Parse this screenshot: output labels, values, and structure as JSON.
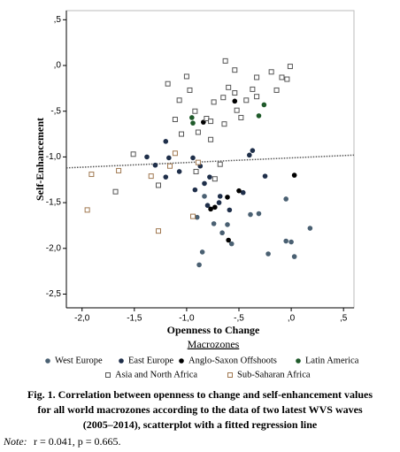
{
  "chart_data": {
    "type": "scatter",
    "x_label": "Openness to Change",
    "y_label": "Self-Enhancement",
    "legend_title": "Macrozones",
    "xlim": [
      -2.15,
      0.6
    ],
    "ylim": [
      -2.65,
      0.6
    ],
    "xticks": [
      {
        "value": -2.0,
        "label": "-2,0"
      },
      {
        "value": -1.5,
        "label": "-1,5"
      },
      {
        "value": -1.0,
        "label": "-1,0"
      },
      {
        "value": -0.5,
        "label": "-,5"
      },
      {
        "value": 0,
        "label": ",0"
      },
      {
        "value": 0.5,
        "label": ",5"
      }
    ],
    "yticks": [
      {
        "value": 0.5,
        "label": ",5"
      },
      {
        "value": 0,
        "label": ",0"
      },
      {
        "value": -0.5,
        "label": "-,5"
      },
      {
        "value": -1.0,
        "label": "-1,0"
      },
      {
        "value": -1.5,
        "label": "-1,5"
      },
      {
        "value": -2.0,
        "label": "-2,0"
      },
      {
        "value": -2.5,
        "label": "-2,5"
      }
    ],
    "fit_line": {
      "x": [
        -2.15,
        0.6
      ],
      "y": [
        -1.12,
        -0.98
      ],
      "color": "#555555"
    },
    "series": [
      {
        "name": "West Europe",
        "color": "#4a6072",
        "marker": "circle",
        "x": [
          -0.83,
          -0.9,
          -0.61,
          -0.74,
          -0.66,
          -0.57,
          -0.39,
          -0.31,
          -0.85,
          -0.88,
          -0.22,
          -0.05,
          -0.05,
          0.0,
          0.03,
          0.18
        ],
        "y": [
          -1.43,
          -1.66,
          -1.74,
          -1.73,
          -1.83,
          -1.95,
          -1.63,
          -1.62,
          -2.04,
          -2.18,
          -2.06,
          -1.46,
          -1.92,
          -1.93,
          -2.09,
          -1.78
        ]
      },
      {
        "name": "East Europe",
        "color": "#1f2f4a",
        "marker": "circle",
        "x": [
          -1.38,
          -1.3,
          -1.2,
          -1.17,
          -1.2,
          -1.07,
          -0.94,
          -0.87,
          -0.78,
          -0.83,
          -0.92,
          -0.8,
          -0.69,
          -0.68,
          -0.59,
          -0.37,
          -0.46,
          -0.4,
          -0.25
        ],
        "y": [
          -1.0,
          -1.09,
          -0.83,
          -1.01,
          -1.22,
          -1.16,
          -1.01,
          -1.1,
          -1.22,
          -1.29,
          -1.36,
          -1.53,
          -1.5,
          -1.43,
          -1.58,
          -0.93,
          -1.39,
          -0.98,
          -1.21
        ]
      },
      {
        "name": "Anglo-Saxon Offshoots",
        "color": "#000000",
        "marker": "circle",
        "x": [
          -0.84,
          -0.77,
          -0.73,
          -0.61,
          -0.54,
          -0.5,
          -0.6,
          0.03
        ],
        "y": [
          -0.62,
          -1.57,
          -1.55,
          -1.44,
          -0.39,
          -1.37,
          -1.91,
          -1.2
        ]
      },
      {
        "name": "Latin America",
        "color": "#1f5a2a",
        "marker": "circle",
        "x": [
          -0.95,
          -0.94,
          -0.31,
          -0.26
        ],
        "y": [
          -0.57,
          -0.63,
          -0.55,
          -0.43
        ]
      },
      {
        "name": "Asia and North Africa",
        "color": "#555555",
        "marker": "square",
        "x": [
          -1.51,
          -1.68,
          -1.27,
          -1.18,
          -1.11,
          -1.07,
          -1.0,
          -0.97,
          -0.92,
          -0.81,
          -0.89,
          -0.77,
          -0.77,
          -0.74,
          -0.65,
          -0.64,
          -0.6,
          -0.54,
          -0.52,
          -0.43,
          -0.37,
          -0.33,
          -0.48,
          -0.33,
          -0.19,
          -0.14,
          -0.09,
          -0.04,
          -0.01,
          -0.63,
          -0.54,
          -1.05,
          -0.68,
          -0.73,
          -0.91
        ],
        "y": [
          -0.97,
          -1.38,
          -1.31,
          -0.2,
          -0.59,
          -0.38,
          -0.12,
          -0.27,
          -0.5,
          -0.58,
          -0.73,
          -0.61,
          -0.81,
          -0.4,
          -0.35,
          -0.64,
          -0.24,
          -0.3,
          -0.49,
          -0.38,
          -0.26,
          -0.34,
          -0.57,
          -0.13,
          -0.07,
          -0.27,
          -0.13,
          -0.15,
          -0.01,
          0.05,
          -0.05,
          -0.75,
          -1.08,
          -1.24,
          -1.16
        ]
      },
      {
        "name": "Sub-Saharan Africa",
        "color": "#a07850",
        "marker": "square",
        "x": [
          -1.65,
          -1.91,
          -1.95,
          -0.94,
          -1.27,
          -1.11,
          -1.16,
          -0.89,
          -1.34
        ],
        "y": [
          -1.15,
          -1.19,
          -1.58,
          -1.65,
          -1.81,
          -0.96,
          -1.1,
          -1.06,
          -1.21
        ]
      }
    ]
  },
  "caption": {
    "lines": [
      "Fig. 1. Correlation between openness to change and self-enhancement values",
      "for all world macrozones according to the data of two latest WVS waves",
      "(2005–2014), scatterplot with a fitted regression line"
    ],
    "note_label": "Note:",
    "note_text": "r = 0.041, p = 0.665."
  }
}
